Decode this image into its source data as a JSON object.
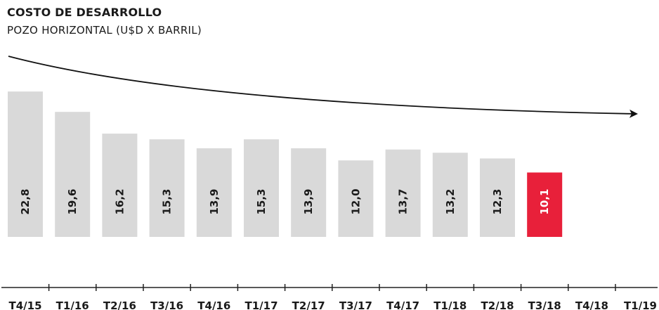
{
  "chart_data": {
    "type": "bar",
    "title": "COSTO DE DESARROLLO",
    "subtitle": "POZO HORIZONTAL (U$D X BARRIL)",
    "categories": [
      "T4/15",
      "T1/16",
      "T2/16",
      "T3/16",
      "T4/16",
      "T1/17",
      "T2/17",
      "T3/17",
      "T4/17",
      "T1/18",
      "T2/18",
      "T3/18",
      "T4/18",
      "T1/19"
    ],
    "values": [
      22.8,
      19.6,
      16.2,
      15.3,
      13.9,
      15.3,
      13.9,
      12.0,
      13.7,
      13.2,
      12.3,
      10.1,
      null,
      null
    ],
    "value_labels": [
      "22,8",
      "19,6",
      "16,2",
      "15,3",
      "13,9",
      "15,3",
      "13,9",
      "12,0",
      "13,7",
      "13,2",
      "12,3",
      "10,1",
      "",
      ""
    ],
    "highlight_index": 11,
    "colors": {
      "bar": "#d9d9d9",
      "highlight": "#e8203a",
      "label": "#1a1a1a",
      "highlight_label": "#ffffff",
      "trend_arrow": "#111111",
      "axis": "#222222"
    },
    "trend_arrow": "decreasing",
    "grid": false,
    "legend": "none"
  }
}
